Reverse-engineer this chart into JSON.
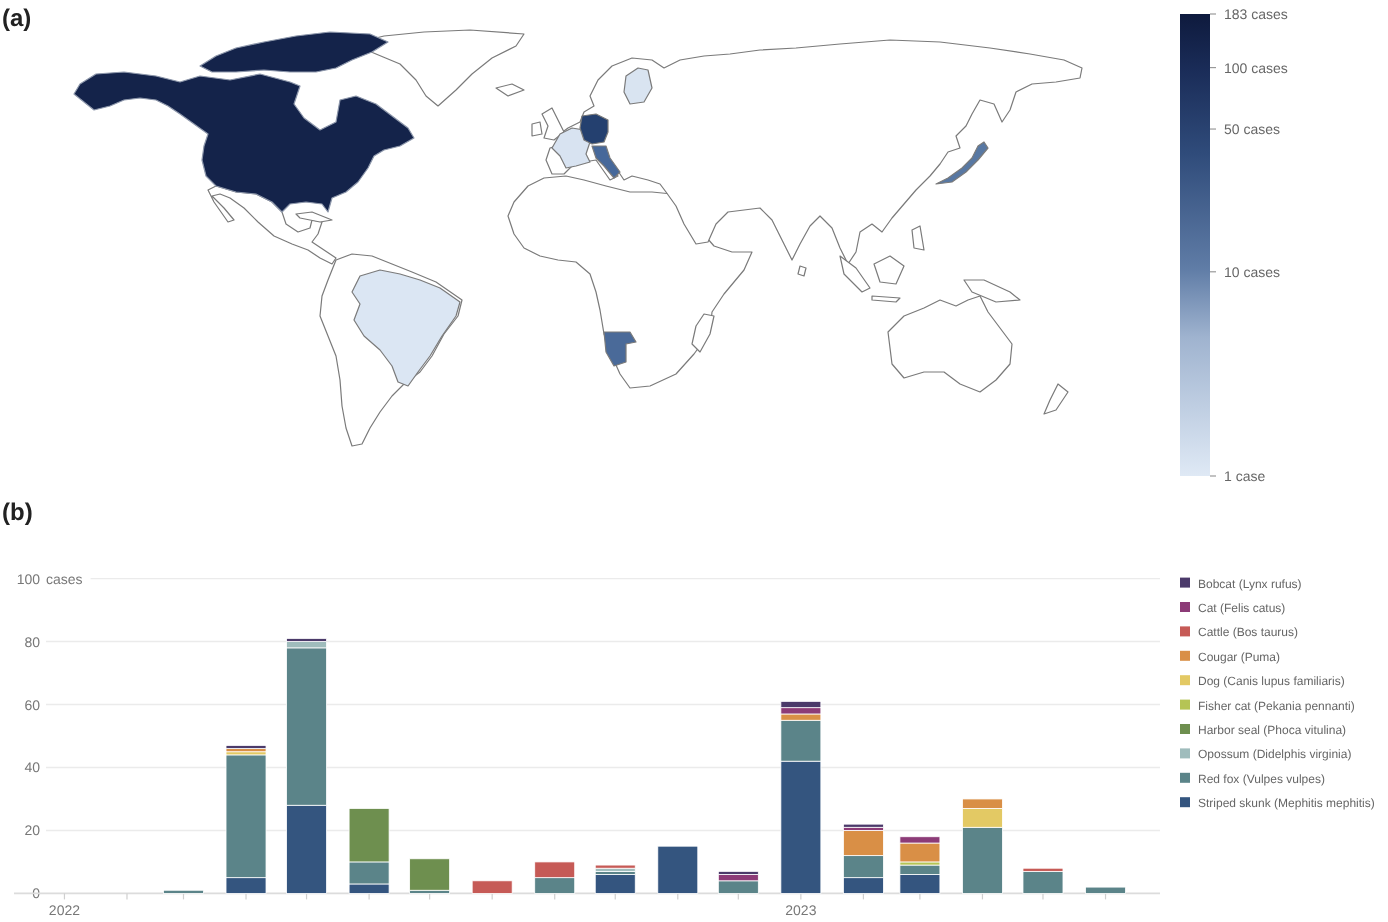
{
  "chart_data": [
    {
      "type": "other",
      "title": "(a)",
      "annotations": [
        "183 cases",
        "100 cases",
        "50 cases",
        "10 cases",
        "1 case"
      ]
    },
    {
      "type": "bar",
      "title": "(b)",
      "ylabel": "cases",
      "stacked": true,
      "grid": "y",
      "legend": "right",
      "x": [
        "2022-03",
        "2022-04",
        "2022-05",
        "2022-06",
        "2022-07",
        "2022-08",
        "2022-09",
        "2022-10",
        "2022-11",
        "2022-12",
        "2023-01",
        "2023-02",
        "2023-03",
        "2023-04",
        "2023-05",
        "2023-06"
      ],
      "xlim": [
        "2021-12-07",
        "2023-06-28"
      ],
      "xticks": [
        {
          "value": "2022-01",
          "label": "2022"
        },
        {
          "value": "2022-02",
          "label": null
        },
        {
          "value": "2022-03",
          "label": null
        },
        {
          "value": "2022-04",
          "label": null
        },
        {
          "value": "2022-05",
          "label": null
        },
        {
          "value": "2022-06",
          "label": null
        },
        {
          "value": "2022-07",
          "label": null
        },
        {
          "value": "2022-08",
          "label": null
        },
        {
          "value": "2022-09",
          "label": null
        },
        {
          "value": "2022-10",
          "label": null
        },
        {
          "value": "2022-11",
          "label": null
        },
        {
          "value": "2022-12",
          "label": null
        },
        {
          "value": "2023-01",
          "label": "2023"
        },
        {
          "value": "2023-02",
          "label": null
        },
        {
          "value": "2023-03",
          "label": null
        },
        {
          "value": "2023-04",
          "label": null
        },
        {
          "value": "2023-05",
          "label": null
        },
        {
          "value": "2023-06",
          "label": null
        }
      ],
      "ylim": [
        0,
        100
      ],
      "yticks": [
        0,
        20,
        40,
        60,
        80,
        100
      ],
      "series": [
        {
          "name": "Striped skunk (Mephitis mephitis)",
          "color": "#34557f",
          "values": [
            null,
            5,
            28,
            3,
            null,
            null,
            null,
            6,
            15,
            null,
            42,
            5,
            6,
            null,
            null,
            null
          ]
        },
        {
          "name": "Red fox (Vulpes vulpes)",
          "color": "#5b8489",
          "values": [
            1,
            39,
            50,
            7,
            1,
            null,
            5,
            1,
            null,
            4,
            13,
            7,
            3,
            21,
            7,
            2
          ]
        },
        {
          "name": "Opossum (Didelphis virginia)",
          "color": "#9fbcbc",
          "values": [
            null,
            null,
            2,
            null,
            null,
            null,
            null,
            1,
            null,
            null,
            null,
            null,
            null,
            null,
            null,
            null
          ]
        },
        {
          "name": "Harbor seal (Phoca vitulina)",
          "color": "#6e8f4f",
          "values": [
            null,
            null,
            null,
            17,
            10,
            null,
            null,
            null,
            null,
            null,
            null,
            null,
            null,
            null,
            null,
            null
          ]
        },
        {
          "name": "Fisher cat (Pekania pennanti)",
          "color": "#b5c455",
          "values": [
            null,
            null,
            null,
            null,
            null,
            null,
            null,
            null,
            null,
            null,
            null,
            null,
            1,
            null,
            null,
            null
          ]
        },
        {
          "name": "Dog (Canis lupus familiaris)",
          "color": "#e3c964",
          "values": [
            null,
            1,
            null,
            null,
            null,
            null,
            null,
            null,
            null,
            null,
            null,
            null,
            null,
            6,
            null,
            null
          ]
        },
        {
          "name": "Cougar (Puma)",
          "color": "#d98f46",
          "values": [
            null,
            1,
            null,
            null,
            null,
            null,
            null,
            null,
            null,
            null,
            2,
            8,
            6,
            3,
            null,
            null
          ]
        },
        {
          "name": "Cattle (Bos taurus)",
          "color": "#c65a56",
          "values": [
            null,
            null,
            null,
            null,
            null,
            4,
            5,
            1,
            null,
            null,
            null,
            null,
            null,
            null,
            1,
            null
          ]
        },
        {
          "name": "Cat (Felis catus)",
          "color": "#8c3b77",
          "values": [
            null,
            null,
            null,
            null,
            null,
            null,
            null,
            null,
            null,
            2,
            2,
            1,
            2,
            null,
            null,
            null
          ]
        },
        {
          "name": "Bobcat (Lynx rufus)",
          "color": "#4b3a6a",
          "values": [
            null,
            1,
            1,
            null,
            null,
            null,
            null,
            null,
            null,
            1,
            2,
            1,
            null,
            null,
            null,
            null
          ]
        }
      ]
    }
  ]
}
